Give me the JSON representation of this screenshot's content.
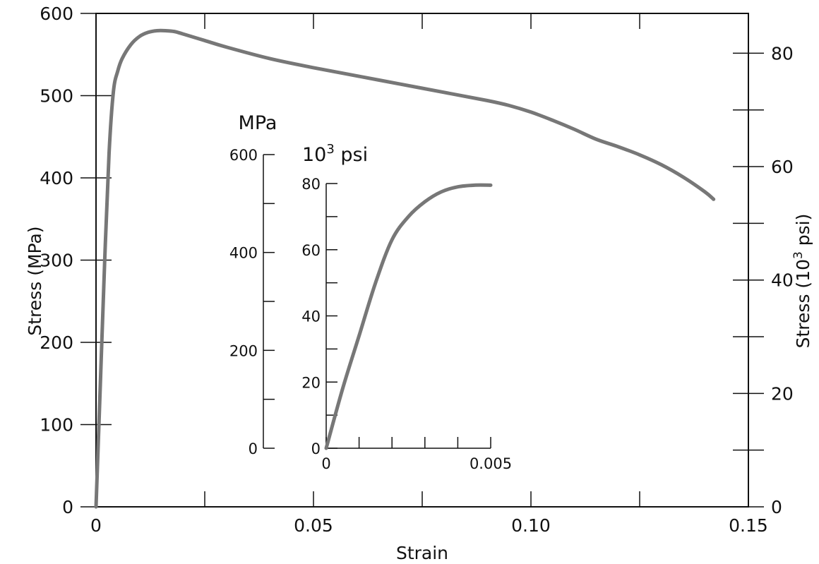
{
  "colors": {
    "curve": "#777777",
    "axis": "#111111"
  },
  "chart_data": [
    {
      "type": "line",
      "xlabel": "Strain",
      "ylabel": "Stress (MPa)",
      "y2label": "Stress (10³ psi)",
      "xlim": [
        0,
        0.15
      ],
      "ylim": [
        0,
        600
      ],
      "y2lim": [
        0,
        87.02
      ],
      "x_ticks": [
        0,
        0.025,
        0.05,
        0.075,
        0.1,
        0.125,
        0.15
      ],
      "x_tick_labels": [
        {
          "value": 0,
          "label": "0"
        },
        {
          "value": 0.05,
          "label": "0.05"
        },
        {
          "value": 0.1,
          "label": "0.10"
        },
        {
          "value": 0.15,
          "label": "0.15"
        }
      ],
      "y_tick_labels": [
        {
          "value": 0,
          "label": "0"
        },
        {
          "value": 100,
          "label": "100"
        },
        {
          "value": 200,
          "label": "200"
        },
        {
          "value": 300,
          "label": "300"
        },
        {
          "value": 400,
          "label": "400"
        },
        {
          "value": 500,
          "label": "500"
        },
        {
          "value": 600,
          "label": "600"
        }
      ],
      "y2_tick_labels": [
        {
          "value": 0,
          "label": "0"
        },
        {
          "value": 20,
          "label": "20"
        },
        {
          "value": 40,
          "label": "40"
        },
        {
          "value": 60,
          "label": "60"
        },
        {
          "value": 80,
          "label": "80"
        }
      ],
      "series": [
        {
          "x": [
            0,
            0.001,
            0.002,
            0.003,
            0.004,
            0.005,
            0.006,
            0.008,
            0.01,
            0.012,
            0.014,
            0.016,
            0.018,
            0.02,
            0.025,
            0.03,
            0.04,
            0.05,
            0.06,
            0.07,
            0.08,
            0.09,
            0.095,
            0.1,
            0.105,
            0.11,
            0.115,
            0.12,
            0.125,
            0.13,
            0.135,
            0.14,
            0.142
          ],
          "y": [
            0,
            150,
            300,
            430,
            505,
            530,
            545,
            562,
            572,
            577,
            579,
            579,
            578,
            575,
            567,
            559,
            545,
            534,
            524,
            514,
            504,
            494,
            488,
            480,
            470,
            459,
            447,
            438,
            428,
            416,
            401,
            383,
            374
          ]
        }
      ]
    },
    {
      "type": "line",
      "title": "",
      "xlim": [
        0,
        0.005
      ],
      "ylim": [
        0,
        600
      ],
      "y2lim": [
        0,
        80
      ],
      "left_unit": "MPa",
      "right_unit_base": "10",
      "right_unit_exp": "3",
      "right_unit_suffix": " psi",
      "x_ticks": [
        0,
        0.001,
        0.002,
        0.003,
        0.004,
        0.005
      ],
      "x_tick_labels": [
        {
          "value": 0,
          "label": "0"
        },
        {
          "value": 0.005,
          "label": "0.005"
        }
      ],
      "left_ticks": [
        0,
        100,
        200,
        300,
        400,
        500,
        600
      ],
      "left_tick_labels": [
        {
          "value": 0,
          "label": "0"
        },
        {
          "value": 200,
          "label": "200"
        },
        {
          "value": 400,
          "label": "400"
        },
        {
          "value": 600,
          "label": "600"
        }
      ],
      "right_ticks": [
        0,
        10,
        20,
        30,
        40,
        50,
        60,
        70,
        80
      ],
      "right_tick_labels": [
        {
          "value": 0,
          "label": "0"
        },
        {
          "value": 20,
          "label": "20"
        },
        {
          "value": 40,
          "label": "40"
        },
        {
          "value": 60,
          "label": "60"
        },
        {
          "value": 80,
          "label": "80"
        }
      ],
      "series": [
        {
          "x": [
            0,
            0.0005,
            0.001,
            0.0015,
            0.002,
            0.0025,
            0.003,
            0.0035,
            0.004,
            0.0045,
            0.005
          ],
          "y2": [
            0,
            18,
            34,
            50,
            63,
            70,
            74.5,
            77.5,
            79,
            79.5,
            79.5
          ]
        }
      ]
    }
  ],
  "labels": {
    "xlabel": "Strain",
    "ylabel": "Stress (MPa)",
    "y2label_prefix": "Stress (10",
    "y2label_exp": "3",
    "y2label_suffix": " psi)",
    "inset_left_unit": "MPa",
    "inset_right_base": "10",
    "inset_right_exp": "3",
    "inset_right_suffix": " psi"
  }
}
